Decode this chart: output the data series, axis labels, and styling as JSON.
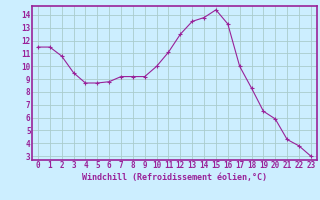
{
  "x": [
    0,
    1,
    2,
    3,
    4,
    5,
    6,
    7,
    8,
    9,
    10,
    11,
    12,
    13,
    14,
    15,
    16,
    17,
    18,
    19,
    20,
    21,
    22,
    23
  ],
  "y": [
    11.5,
    11.5,
    10.8,
    9.5,
    8.7,
    8.7,
    8.8,
    9.2,
    9.2,
    9.2,
    10.0,
    11.1,
    12.5,
    13.5,
    13.8,
    14.4,
    13.3,
    10.0,
    8.3,
    6.5,
    5.9,
    4.3,
    3.8,
    3.0
  ],
  "line_color": "#992299",
  "marker": "+",
  "marker_size": 3,
  "bg_color": "#cceeff",
  "grid_color": "#aacccc",
  "xlabel": "Windchill (Refroidissement éolien,°C)",
  "xlim_min": -0.5,
  "xlim_max": 23.5,
  "ylim_min": 2.7,
  "ylim_max": 14.7,
  "xticks": [
    0,
    1,
    2,
    3,
    4,
    5,
    6,
    7,
    8,
    9,
    10,
    11,
    12,
    13,
    14,
    15,
    16,
    17,
    18,
    19,
    20,
    21,
    22,
    23
  ],
  "yticks": [
    3,
    4,
    5,
    6,
    7,
    8,
    9,
    10,
    11,
    12,
    13,
    14
  ],
  "spine_color": "#992299",
  "xlabel_color": "#992299",
  "tick_color": "#992299",
  "tick_fontsize": 5.5,
  "xlabel_fontsize": 6.0
}
